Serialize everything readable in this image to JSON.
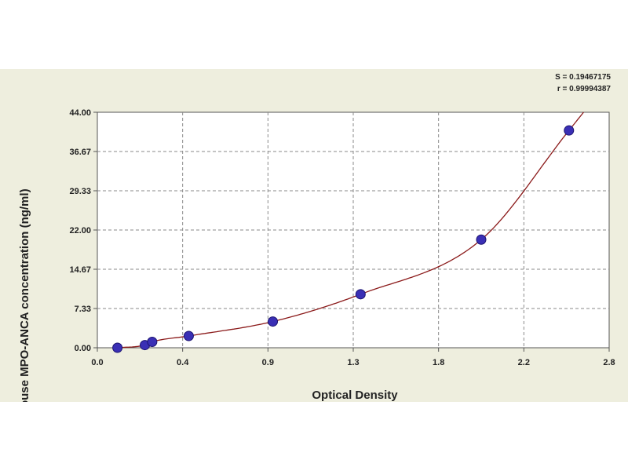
{
  "chart_data": {
    "type": "scatter",
    "xlabel": "Optical Density",
    "ylabel": "Mouse MPO-ANCA concentration (ng/ml)",
    "xlim": [
      0.0,
      2.8
    ],
    "ylim": [
      0.0,
      44.0
    ],
    "x_ticks": [
      "0.0",
      "0.4",
      "0.9",
      "1.3",
      "1.8",
      "2.2",
      "2.8"
    ],
    "y_ticks": [
      "0.00",
      "7.33",
      "14.67",
      "22.00",
      "29.33",
      "36.67",
      "44.00"
    ],
    "grid": true,
    "stats": [
      "S = 0.19467175",
      "r = 0.99994387"
    ],
    "series": [
      {
        "points": [
          {
            "x": 0.11,
            "y": 0.0
          },
          {
            "x": 0.26,
            "y": 0.5
          },
          {
            "x": 0.3,
            "y": 1.1
          },
          {
            "x": 0.5,
            "y": 2.2
          },
          {
            "x": 0.96,
            "y": 4.9
          },
          {
            "x": 1.44,
            "y": 10.0
          },
          {
            "x": 2.1,
            "y": 20.2
          },
          {
            "x": 2.58,
            "y": 40.6
          }
        ],
        "marker_color": "#3a2fb5",
        "curve_color": "#8b1a1a"
      }
    ]
  }
}
